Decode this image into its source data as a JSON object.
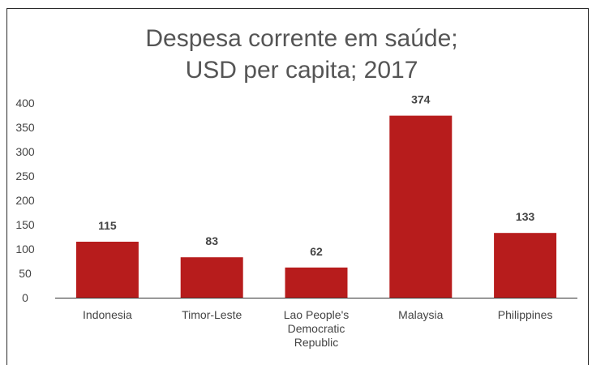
{
  "chart_data": {
    "type": "bar",
    "title_lines": [
      "Despesa corrente em saúde;",
      "USD per capita; 2017"
    ],
    "categories": [
      [
        "Indonesia"
      ],
      [
        "Timor-Leste"
      ],
      [
        "Lao People's",
        "Democratic",
        "Republic"
      ],
      [
        "Malaysia"
      ],
      [
        "Philippines"
      ]
    ],
    "values": [
      115,
      83,
      62,
      374,
      133
    ],
    "data_labels": [
      "115",
      "83",
      "62",
      "374",
      "133"
    ],
    "y_ticks": [
      "0",
      "50",
      "100",
      "150",
      "200",
      "250",
      "300",
      "350",
      "400"
    ],
    "ylim": [
      0,
      400
    ],
    "bar_color": "#b71c1c",
    "grid": false,
    "legend": "none"
  }
}
